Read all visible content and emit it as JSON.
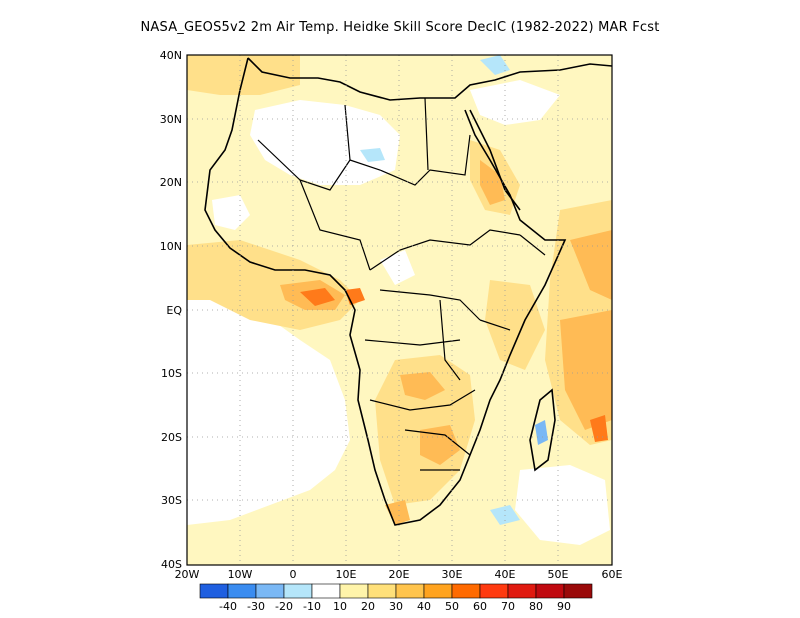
{
  "title": "NASA_GEOS5v2  2m Air Temp. Heidke Skill Score DecIC (1982-2022) MAR Fcst",
  "map": {
    "lat_labels": [
      "40N",
      "30N",
      "20N",
      "10N",
      "EQ",
      "10S",
      "20S",
      "30S",
      "40S"
    ],
    "lon_labels": [
      "20W",
      "10W",
      "0",
      "10E",
      "20E",
      "30E",
      "40E",
      "50E",
      "60E"
    ],
    "grid": "dotted"
  },
  "colorbar": {
    "labels": [
      "-40",
      "-30",
      "-20",
      "-10",
      "10",
      "20",
      "30",
      "40",
      "50",
      "60",
      "70",
      "80",
      "90"
    ],
    "colors": [
      "#1f5fe0",
      "#3a8cf0",
      "#7ab8f5",
      "#b5e6fa",
      "#ffffff",
      "#fff4aa",
      "#ffe07a",
      "#ffc44d",
      "#ffa31f",
      "#ff6a00",
      "#ff3a10",
      "#e01a10",
      "#c00a10",
      "#9a0a0a"
    ]
  }
}
